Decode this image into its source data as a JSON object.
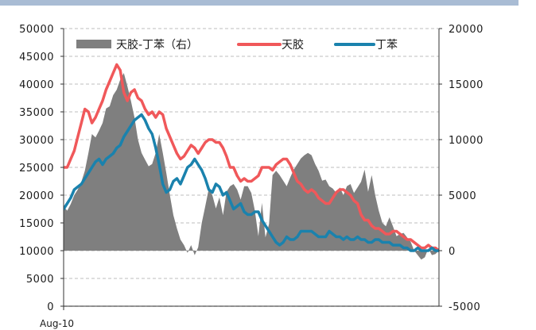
{
  "chart_data": {
    "type": "line",
    "title": "",
    "x_start_label": "Aug-10",
    "left_axis": {
      "ylim": [
        0,
        50000
      ],
      "ticks": [
        "50000",
        "45000",
        "40000",
        "35000",
        "30000",
        "25000",
        "20000",
        "15000",
        "10000",
        "5000",
        "0"
      ]
    },
    "right_axis": {
      "ylim": [
        -5000,
        20000
      ],
      "ticks": [
        "20000",
        "15000",
        "10000",
        "5000",
        "0",
        "-5000"
      ]
    },
    "grid": true,
    "legend_position": "top",
    "colors": {
      "spread": "#7f7f7f",
      "tianjiao": "#f0585a",
      "dingben": "#1a82ad"
    },
    "series": [
      {
        "name": "天胶-丁苯（右）",
        "axis": "right",
        "style": "area",
        "values": [
          4000,
          3600,
          4200,
          5000,
          5500,
          6200,
          7200,
          8800,
          10500,
          10200,
          10800,
          11500,
          12800,
          13000,
          14000,
          14500,
          15400,
          16000,
          14800,
          13500,
          12000,
          10000,
          8800,
          8200,
          7600,
          7800,
          8800,
          10500,
          8800,
          7000,
          5000,
          3200,
          2000,
          1000,
          500,
          -200,
          500,
          -400,
          300,
          2500,
          4000,
          5600,
          5000,
          3800,
          4800,
          3200,
          5300,
          5800,
          6000,
          5500,
          4600,
          5800,
          5800,
          5200,
          3600,
          1300,
          4300,
          1200,
          2400,
          6800,
          7200,
          6800,
          6300,
          5800,
          6600,
          7300,
          7800,
          8300,
          8600,
          8800,
          8600,
          7800,
          7200,
          6300,
          6400,
          5800,
          5600,
          5200,
          5700,
          5000,
          5800,
          6000,
          5200,
          5700,
          6200,
          7300,
          5300,
          6800,
          5000,
          3600,
          2500,
          2200,
          3000,
          2200,
          1300,
          1500,
          1600,
          1200,
          800,
          0,
          -400,
          -800,
          -600,
          200,
          -400,
          -300,
          0
        ]
      },
      {
        "name": "天胶",
        "axis": "left",
        "style": "line",
        "values": [
          25000,
          25000,
          26500,
          28000,
          30500,
          33000,
          35500,
          35000,
          33000,
          34000,
          35500,
          37000,
          39000,
          40500,
          42000,
          43500,
          42500,
          38500,
          37000,
          38500,
          39000,
          37500,
          37000,
          35500,
          34500,
          35000,
          34000,
          35000,
          34500,
          32000,
          30500,
          29000,
          27500,
          26500,
          27000,
          28000,
          29000,
          28500,
          27500,
          28500,
          29500,
          30000,
          30000,
          29500,
          29500,
          28500,
          27000,
          25000,
          25000,
          23500,
          22500,
          23000,
          22500,
          22500,
          23000,
          23500,
          25000,
          25000,
          25000,
          24500,
          25500,
          26000,
          26500,
          26500,
          25500,
          24000,
          22500,
          22000,
          21000,
          20500,
          21000,
          20500,
          19500,
          19000,
          18500,
          18500,
          19500,
          20500,
          21000,
          21000,
          20500,
          20000,
          19000,
          18500,
          16500,
          15500,
          15500,
          14500,
          14000,
          14000,
          13500,
          13000,
          13000,
          13500,
          13500,
          13000,
          12500,
          12000,
          12000,
          11500,
          11000,
          10500,
          10500,
          11000,
          10500,
          10500,
          10000
        ]
      },
      {
        "name": "丁苯",
        "axis": "left",
        "style": "line",
        "values": [
          17500,
          18500,
          19500,
          21000,
          21500,
          22000,
          23000,
          24000,
          25000,
          26000,
          26500,
          25500,
          26500,
          27000,
          27500,
          28500,
          29000,
          30500,
          31500,
          32500,
          33500,
          34000,
          34500,
          33500,
          32000,
          31000,
          28500,
          25500,
          22000,
          20500,
          21000,
          22500,
          23000,
          22000,
          23500,
          25000,
          25500,
          26500,
          25500,
          24500,
          23000,
          21000,
          20500,
          22000,
          21500,
          20000,
          20500,
          19000,
          17500,
          18000,
          18500,
          17000,
          16500,
          16500,
          17000,
          17000,
          15500,
          14500,
          13500,
          12500,
          11500,
          11000,
          11500,
          12500,
          12000,
          12000,
          12500,
          13500,
          13500,
          13500,
          13500,
          13000,
          12500,
          12500,
          12500,
          13500,
          13000,
          12500,
          12500,
          12000,
          12500,
          12000,
          12000,
          12500,
          12000,
          12000,
          11500,
          11500,
          12000,
          12000,
          11500,
          11500,
          11500,
          11000,
          11000,
          11000,
          10500,
          10500,
          10000,
          10000,
          10500,
          10000,
          10000,
          10000,
          10500,
          10000,
          10000
        ]
      }
    ]
  }
}
